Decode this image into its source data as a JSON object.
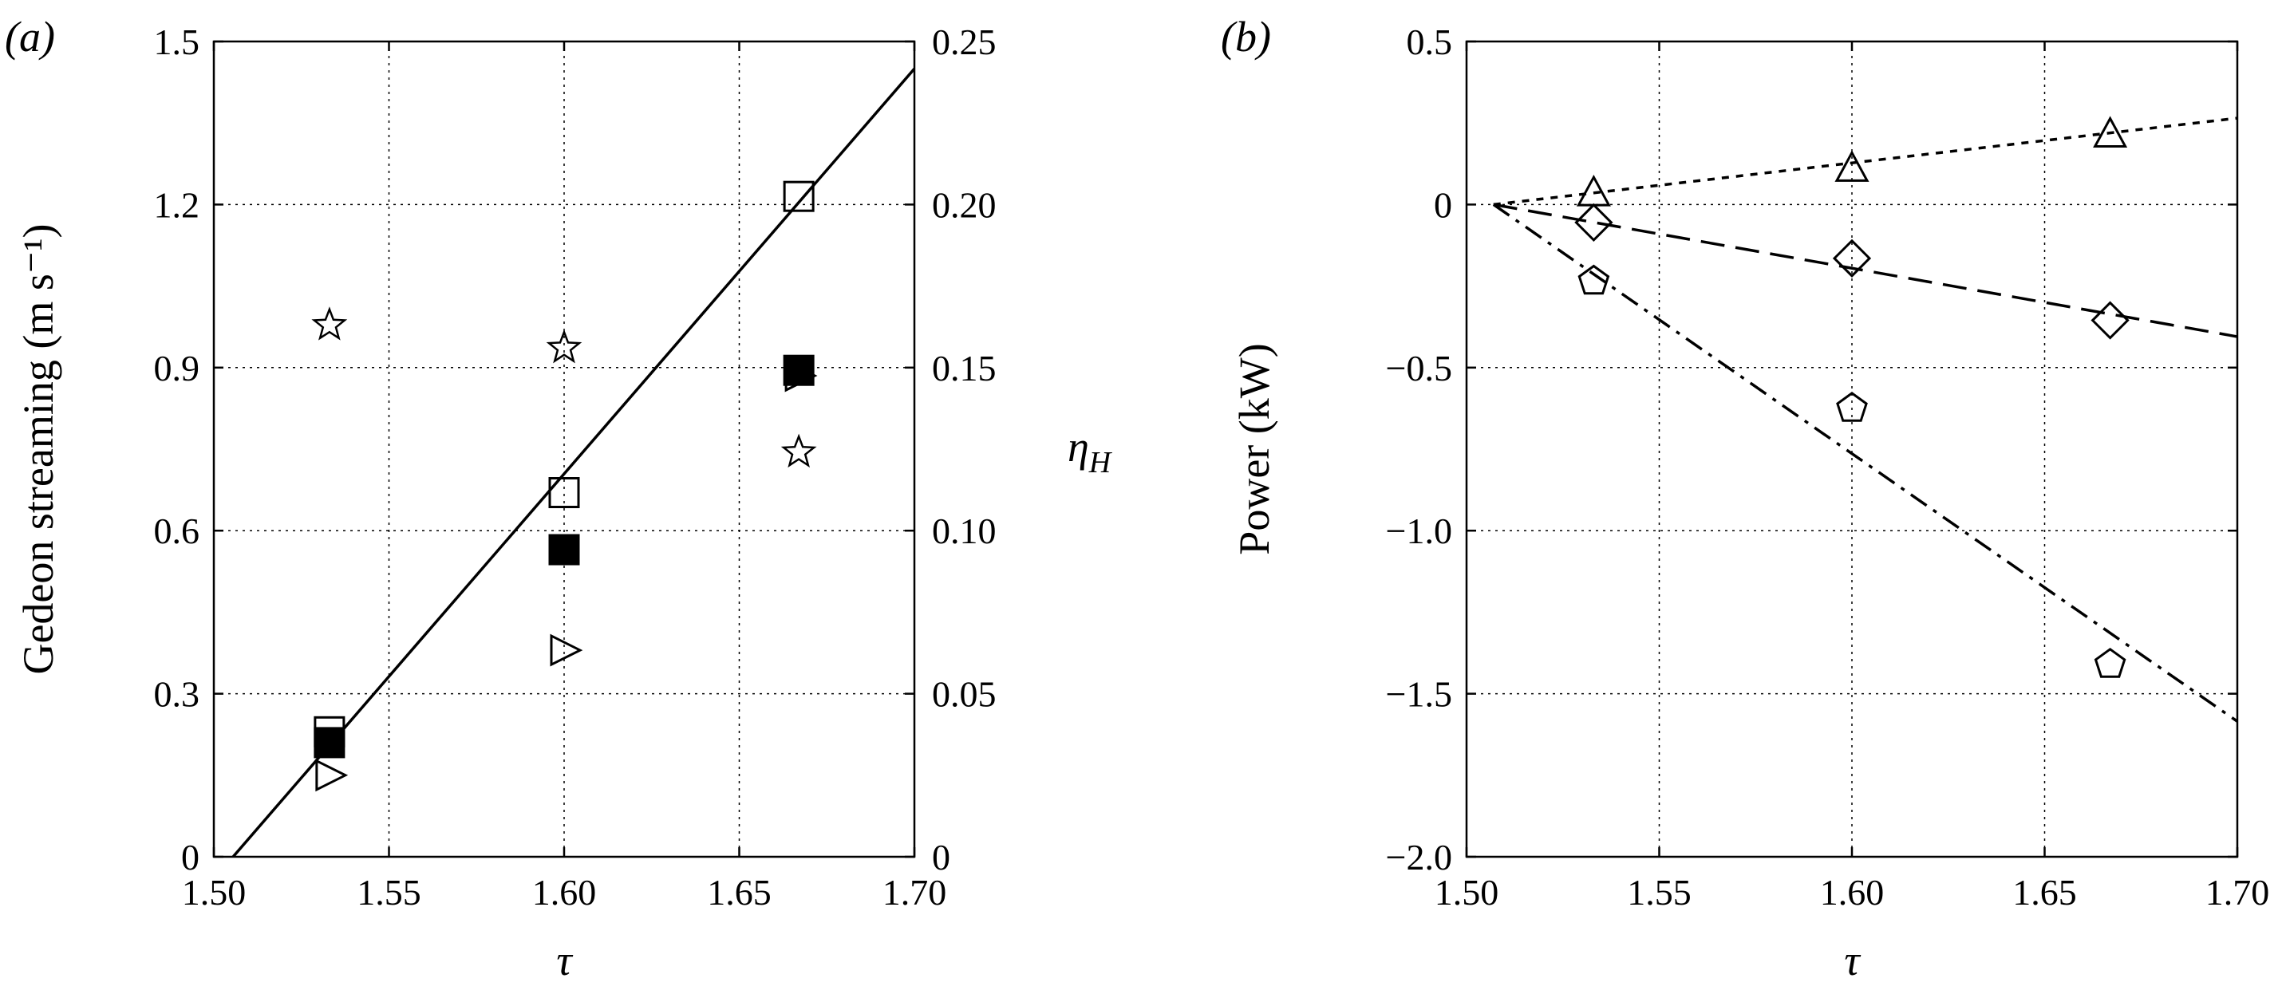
{
  "chart_data": [
    {
      "panel_label": "(a)",
      "type": "scatter",
      "xlabel": "τ",
      "ylabel": "Gedeon streaming (m s⁻¹)",
      "ylabel_right": "η_H",
      "xlim": [
        1.5,
        1.7
      ],
      "ylim": [
        0,
        1.5
      ],
      "ylim_right": [
        0,
        0.25
      ],
      "xticks": [
        "1.50",
        "1.55",
        "1.60",
        "1.65",
        "1.70"
      ],
      "yticks": [
        "0",
        "0.3",
        "0.6",
        "0.9",
        "1.2",
        "1.5"
      ],
      "yticks_right": [
        "0",
        "0.05",
        "0.10",
        "0.15",
        "0.20",
        "0.25"
      ],
      "grid": true,
      "series": [
        {
          "marker": "open-square",
          "axis": "left",
          "x": [
            1.533,
            1.6,
            1.667
          ],
          "y": [
            0.23,
            0.67,
            1.215
          ]
        },
        {
          "marker": "filled-square",
          "axis": "left",
          "x": [
            1.533,
            1.6,
            1.667
          ],
          "y": [
            0.21,
            0.565,
            0.895
          ]
        },
        {
          "marker": "open-triangle-right",
          "axis": "left",
          "x": [
            1.533,
            1.6,
            1.667
          ],
          "y": [
            0.15,
            0.38,
            0.885
          ]
        },
        {
          "marker": "open-star",
          "axis": "right",
          "x": [
            1.533,
            1.6,
            1.667
          ],
          "y": [
            0.163,
            0.156,
            0.124
          ]
        },
        {
          "line": "solid",
          "axis": "left",
          "x": [
            1.5055,
            1.7
          ],
          "y": [
            0,
            1.45
          ]
        }
      ]
    },
    {
      "panel_label": "(b)",
      "type": "scatter",
      "xlabel": "τ",
      "ylabel": "Power (kW)",
      "xlim": [
        1.5,
        1.7
      ],
      "ylim": [
        -2.0,
        0.5
      ],
      "xticks": [
        "1.50",
        "1.55",
        "1.60",
        "1.65",
        "1.70"
      ],
      "yticks": [
        "−2.0",
        "−1.5",
        "−1.0",
        "−0.5",
        "0",
        "0.5"
      ],
      "grid": true,
      "series": [
        {
          "marker": "open-triangle-up",
          "x": [
            1.533,
            1.6,
            1.667
          ],
          "y": [
            0.035,
            0.11,
            0.215
          ]
        },
        {
          "marker": "open-diamond",
          "x": [
            1.533,
            1.6,
            1.667
          ],
          "y": [
            -0.055,
            -0.165,
            -0.355
          ]
        },
        {
          "marker": "open-pentagon",
          "x": [
            1.533,
            1.6,
            1.667
          ],
          "y": [
            -0.235,
            -0.625,
            -1.41
          ]
        },
        {
          "line": "dotted",
          "x": [
            1.507,
            1.7
          ],
          "y": [
            0,
            0.265
          ]
        },
        {
          "line": "dashed",
          "x": [
            1.507,
            1.7
          ],
          "y": [
            0,
            -0.405
          ]
        },
        {
          "line": "dash-dot",
          "x": [
            1.507,
            1.7
          ],
          "y": [
            0,
            -1.585
          ]
        }
      ]
    }
  ]
}
